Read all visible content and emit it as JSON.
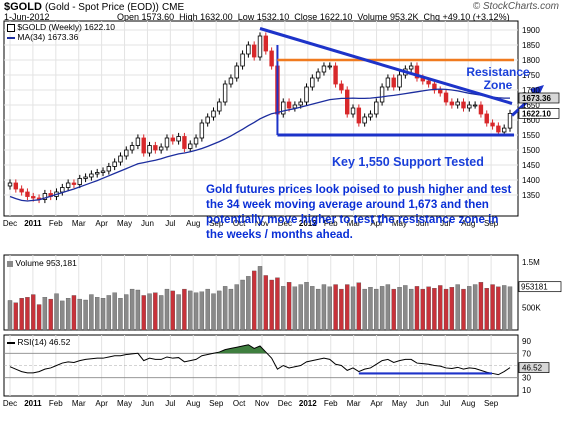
{
  "header": {
    "ticker": "$GOLD",
    "ticker_desc": "(Gold - Spot Price (EOD))",
    "exchange": "CME",
    "date": "1-Jun-2012",
    "open_label": "Open",
    "open": "1573.60",
    "high_label": "High",
    "high": "1632.00",
    "low_label": "Low",
    "low": "1532.10",
    "close_label": "Close",
    "close": "1622.10",
    "volume_label": "Volume",
    "volume": "953.2K",
    "chg_label": "Chg",
    "chg": "+49.10 (+3.12%)",
    "brand": "© StockCharts.com"
  },
  "legend": {
    "price_label": "$GOLD (Weekly) 1622.10",
    "ma_label": "MA(34) 1673.36",
    "volume_label": "Volume 953,181",
    "rsi_label": "RSI(14) 46.52"
  },
  "annotations": {
    "commentary": "Gold futures prices look poised to push higher and test the 34 week moving average around 1,673 and then potentially move higher to test the resistance zone in the weeks / months ahead.",
    "support": "Key 1,550 Support Tested",
    "resistance_line1": "Resistance",
    "resistance_line2": "Zone"
  },
  "colors": {
    "up": "#ffffff",
    "down": "#d8282b",
    "ma": "#1c2d9e",
    "trend": "#1d33c9",
    "resistance": "#f07a1f",
    "annotation": "#0a2fd6",
    "vol_down": "#c8323a",
    "vol_up": "#8a8a8a",
    "rsi_fill": "#3f7f3f",
    "callout_bg": "#d7d7d7"
  },
  "chart_data": [
    {
      "type": "candlestick",
      "title": "$GOLD (Weekly)",
      "ylim": [
        1280,
        1930
      ],
      "y_ticks": [
        1350,
        1400,
        1450,
        1500,
        1550,
        1600,
        1650,
        1700,
        1750,
        1800,
        1850,
        1900
      ],
      "x_month_labels": [
        "Dec",
        "2011",
        "Feb",
        "Mar",
        "Apr",
        "May",
        "Jun",
        "Jul",
        "Aug",
        "Sep",
        "Oct",
        "Nov",
        "Dec",
        "2012",
        "Feb",
        "Mar",
        "Apr",
        "May",
        "Jun",
        "Jul",
        "Aug",
        "Sep"
      ],
      "last_price_callout": "1622.10",
      "ma_callout": "1673.36",
      "support_level": 1550,
      "resistance_level": 1800,
      "close": [
        1390,
        1370,
        1360,
        1345,
        1340,
        1335,
        1355,
        1345,
        1360,
        1375,
        1390,
        1385,
        1405,
        1410,
        1420,
        1425,
        1430,
        1445,
        1460,
        1480,
        1500,
        1515,
        1540,
        1490,
        1515,
        1500,
        1510,
        1540,
        1530,
        1545,
        1505,
        1520,
        1540,
        1590,
        1610,
        1630,
        1660,
        1720,
        1740,
        1780,
        1820,
        1850,
        1810,
        1880,
        1830,
        1780,
        1620,
        1660,
        1640,
        1650,
        1660,
        1710,
        1740,
        1760,
        1780,
        1780,
        1720,
        1700,
        1620,
        1640,
        1590,
        1610,
        1620,
        1660,
        1710,
        1740,
        1710,
        1750,
        1770,
        1780,
        1740,
        1730,
        1720,
        1700,
        1690,
        1660,
        1650,
        1660,
        1640,
        1650,
        1650,
        1620,
        1590,
        1580,
        1560,
        1573,
        1622
      ],
      "ma34": [
        1345,
        1338,
        1332,
        1330,
        1332,
        1334,
        1340,
        1346,
        1352,
        1358,
        1364,
        1370,
        1377,
        1384,
        1391,
        1398,
        1406,
        1414,
        1422,
        1430,
        1438,
        1446,
        1454,
        1458,
        1462,
        1466,
        1471,
        1477,
        1482,
        1487,
        1490,
        1494,
        1499,
        1505,
        1512,
        1520,
        1528,
        1537,
        1547,
        1558,
        1569,
        1581,
        1592,
        1604,
        1613,
        1621,
        1625,
        1630,
        1634,
        1638,
        1643,
        1648,
        1653,
        1658,
        1663,
        1668,
        1670,
        1672,
        1672,
        1673,
        1672,
        1672,
        1673,
        1675,
        1677,
        1680,
        1682,
        1685,
        1688,
        1691,
        1694,
        1697,
        1700,
        1702,
        1703,
        1702,
        1700,
        1697,
        1693,
        1689,
        1686,
        1683,
        1679,
        1676,
        1674,
        1673,
        1673
      ]
    },
    {
      "type": "bar",
      "title": "Volume",
      "y_ticks_labels": [
        "1.5M",
        "1.0M",
        "500K"
      ],
      "callout": "953181",
      "values_k": [
        650,
        600,
        700,
        720,
        780,
        560,
        720,
        680,
        800,
        640,
        700,
        760,
        680,
        660,
        780,
        720,
        700,
        760,
        820,
        700,
        780,
        900,
        880,
        760,
        800,
        820,
        760,
        900,
        860,
        780,
        900,
        860,
        820,
        840,
        900,
        800,
        860,
        960,
        900,
        1000,
        1100,
        1180,
        1300,
        1400,
        1200,
        1100,
        1150,
        960,
        1050,
        950,
        1000,
        1050,
        960,
        900,
        1000,
        950,
        1000,
        900,
        1000,
        950,
        1040,
        900,
        940,
        900,
        960,
        1000,
        900,
        940,
        980,
        900,
        960,
        900,
        950,
        920,
        980,
        900,
        940,
        1000,
        900,
        960,
        1000,
        1050,
        920,
        1000,
        950,
        980,
        953
      ]
    },
    {
      "type": "line",
      "title": "RSI(14)",
      "y_ticks": [
        90,
        70,
        50,
        30,
        10
      ],
      "ylim": [
        0,
        100
      ],
      "callout": "46.52",
      "values": [
        48,
        44,
        40,
        38,
        38,
        40,
        44,
        46,
        50,
        54,
        56,
        55,
        58,
        60,
        61,
        62,
        62,
        64,
        66,
        66,
        68,
        69,
        70,
        58,
        62,
        60,
        60,
        64,
        62,
        63,
        56,
        58,
        60,
        66,
        68,
        70,
        72,
        76,
        78,
        80,
        82,
        84,
        78,
        82,
        72,
        62,
        44,
        50,
        46,
        48,
        50,
        56,
        58,
        60,
        62,
        60,
        52,
        50,
        42,
        46,
        40,
        44,
        46,
        52,
        58,
        60,
        55,
        58,
        60,
        60,
        54,
        53,
        52,
        50,
        49,
        46,
        45,
        47,
        44,
        46,
        45,
        42,
        39,
        37,
        35,
        40,
        46.52
      ]
    }
  ]
}
